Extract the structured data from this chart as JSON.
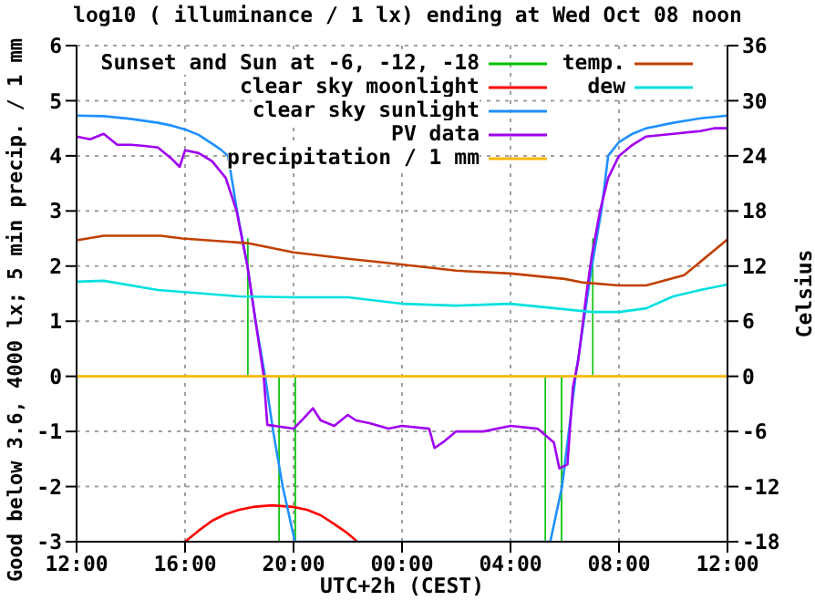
{
  "chart_data": {
    "type": "line",
    "title": "log10 ( illuminance / 1 lx) ending at Wed Oct 08 noon",
    "xlabel": "UTC+2h (CEST)",
    "ylabel": "Good below 3.6, 4000 lx;  5 min precip. / 1 mm",
    "y2label": "Celsius",
    "xlim": [
      "--10-07T12:00",
      "--10-08T12:00"
    ],
    "xticks": [
      {
        "value": "--10-07T12:00",
        "label": "12:00"
      },
      {
        "value": "--10-07T16:00",
        "label": "16:00"
      },
      {
        "value": "--10-07T20:00",
        "label": "20:00"
      },
      {
        "value": "--10-08T00:00",
        "label": "00:00"
      },
      {
        "value": "--10-08T04:00",
        "label": "04:00"
      },
      {
        "value": "--10-08T08:00",
        "label": "08:00"
      },
      {
        "value": "--10-08T12:00",
        "label": "12:00"
      }
    ],
    "ylim": [
      -3,
      6
    ],
    "yticks": [
      -3,
      -2,
      -1,
      0,
      1,
      2,
      3,
      4,
      5,
      6
    ],
    "y2lim": [
      -18,
      36
    ],
    "y2ticks": [
      -18,
      -12,
      -6,
      0,
      6,
      12,
      18,
      24,
      30,
      36
    ],
    "grid": true,
    "legend": "top",
    "series": [
      {
        "name": "Sunset and Sun at -6, -12, -18",
        "color": "#00c000",
        "type": "bar",
        "x": [
          "--10-07T18:19",
          "--10-07T19:28",
          "--10-07T20:04",
          "--10-08T05:17",
          "--10-08T05:53",
          "--10-08T07:02"
        ],
        "values": [
          2.5,
          -3,
          -3,
          -3,
          -3,
          2.5
        ]
      },
      {
        "name": "clear sky moonlight",
        "color": "#ff0000",
        "x": [
          "--10-07T16:00",
          "--10-07T16:30",
          "--10-07T17:00",
          "--10-07T17:30",
          "--10-07T18:00",
          "--10-07T18:30",
          "--10-07T19:12",
          "--10-07T20:00",
          "--10-07T20:30",
          "--10-07T21:00",
          "--10-07T21:30",
          "--10-07T22:00",
          "--10-07T22:21"
        ],
        "values": [
          -3,
          -2.8,
          -2.62,
          -2.5,
          -2.42,
          -2.37,
          -2.34,
          -2.37,
          -2.42,
          -2.52,
          -2.68,
          -2.85,
          -3
        ]
      },
      {
        "name": "clear sky sunlight",
        "color": "#1e90ff",
        "x": [
          "--10-07T12:00",
          "--10-07T13:00",
          "--10-07T14:00",
          "--10-07T15:00",
          "--10-07T15:30",
          "--10-07T16:00",
          "--10-07T16:30",
          "--10-07T17:00",
          "--10-07T17:18",
          "--10-07T17:35",
          "--10-07T17:55",
          "--10-07T18:18",
          "--10-07T18:36",
          "--10-07T18:57",
          "--10-07T19:15",
          "--10-07T19:36",
          "--10-07T20:03",
          "--10-08T05:28",
          "--10-08T05:54",
          "--10-08T06:09",
          "--10-08T06:24",
          "--10-08T06:42",
          "--10-08T07:00",
          "--10-08T07:21",
          "--10-08T07:36",
          "--10-08T08:00",
          "--10-08T08:30",
          "--10-08T09:00",
          "--10-08T10:00",
          "--10-08T11:00",
          "--10-08T12:00"
        ],
        "values": [
          4.73,
          4.72,
          4.67,
          4.6,
          4.55,
          4.48,
          4.38,
          4.22,
          4.12,
          4,
          3,
          2,
          1,
          0,
          -1,
          -2,
          -3,
          -3,
          -2,
          -1,
          0,
          1,
          2,
          3,
          4,
          4.25,
          4.4,
          4.5,
          4.6,
          4.68,
          4.73
        ]
      },
      {
        "name": "PV data",
        "color": "#a000f0",
        "x": [
          "--10-07T12:00",
          "--10-07T12:30",
          "--10-07T13:00",
          "--10-07T13:30",
          "--10-07T14:00",
          "--10-07T14:30",
          "--10-07T15:00",
          "--10-07T15:30",
          "--10-07T15:48",
          "--10-07T16:00",
          "--10-07T16:30",
          "--10-07T17:00",
          "--10-07T17:30",
          "--10-07T17:54",
          "--10-07T18:18",
          "--10-07T18:36",
          "--10-07T18:54",
          "--10-07T19:02",
          "--10-07T20:00",
          "--10-07T20:18",
          "--10-07T20:43",
          "--10-07T21:00",
          "--10-07T21:30",
          "--10-07T22:00",
          "--10-07T22:18",
          "--10-07T22:48",
          "--10-07T23:30",
          "--10-08T00:00",
          "--10-08T01:00",
          "--10-08T01:12",
          "--10-08T01:30",
          "--10-08T02:00",
          "--10-08T03:00",
          "--10-08T04:00",
          "--10-08T05:00",
          "--10-08T05:36",
          "--10-08T05:48",
          "--10-08T06:06",
          "--10-08T06:18",
          "--10-08T06:30",
          "--10-08T06:48",
          "--10-08T07:00",
          "--10-08T07:18",
          "--10-08T07:36",
          "--10-08T08:00",
          "--10-08T08:30",
          "--10-08T09:00",
          "--10-08T10:00",
          "--10-08T11:00",
          "--10-08T11:30",
          "--10-08T12:00"
        ],
        "values": [
          4.35,
          4.3,
          4.4,
          4.2,
          4.2,
          4.18,
          4.15,
          3.95,
          3.8,
          4.1,
          4.05,
          3.9,
          3.6,
          3.0,
          2.0,
          1.0,
          0,
          -0.88,
          -0.95,
          -0.8,
          -0.58,
          -0.8,
          -0.9,
          -0.7,
          -0.8,
          -0.85,
          -0.95,
          -0.9,
          -0.95,
          -1.3,
          -1.2,
          -1.0,
          -1.0,
          -0.9,
          -0.95,
          -1.2,
          -1.67,
          -1.6,
          -0.2,
          0.3,
          1.5,
          2.2,
          3.0,
          3.6,
          4.0,
          4.2,
          4.35,
          4.4,
          4.45,
          4.5,
          4.5
        ]
      },
      {
        "name": "precipitation / 1 mm",
        "color": "#f8b800",
        "x": [
          "--10-07T12:00",
          "--10-08T12:00"
        ],
        "values": [
          0,
          0
        ]
      },
      {
        "name": "temp.",
        "color": "#c04000",
        "axis": "y2",
        "x": [
          "--10-07T12:00",
          "--10-07T13:00",
          "--10-07T15:06",
          "--10-07T15:54",
          "--10-07T18:18",
          "--10-07T20:00",
          "--10-07T22:00",
          "--10-07T23:36",
          "--10-08T02:00",
          "--10-08T04:00",
          "--10-08T06:00",
          "--10-08T06:42",
          "--10-08T08:00",
          "--10-08T09:00",
          "--10-08T10:24",
          "--10-08T12:00"
        ],
        "values": [
          14.8,
          15.3,
          15.3,
          15.0,
          14.5,
          13.5,
          12.8,
          12.3,
          11.5,
          11.2,
          10.6,
          10.2,
          9.9,
          9.9,
          11,
          14.9
        ]
      },
      {
        "name": "dew",
        "color": "#00e0e0",
        "axis": "y2",
        "x": [
          "--10-07T12:00",
          "--10-07T13:00",
          "--10-07T15:00",
          "--10-07T18:00",
          "--10-07T20:00",
          "--10-07T22:00",
          "--10-08T00:00",
          "--10-08T02:00",
          "--10-08T04:00",
          "--10-08T06:00",
          "--10-08T07:00",
          "--10-08T08:00",
          "--10-08T09:00",
          "--10-08T10:00",
          "--10-08T11:00",
          "--10-08T12:00"
        ],
        "values": [
          10.3,
          10.4,
          9.4,
          8.7,
          8.6,
          8.6,
          7.9,
          7.7,
          7.9,
          7.3,
          7.0,
          7.0,
          7.4,
          8.7,
          9.4,
          10
        ]
      }
    ]
  }
}
